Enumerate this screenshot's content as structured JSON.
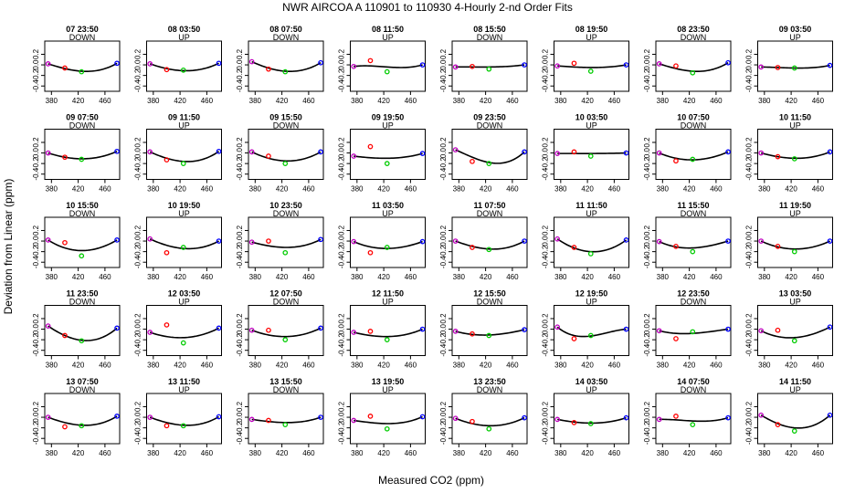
{
  "chart_data": {
    "type": "scatter",
    "title": "NWR   AIRCOA A   110901 to 110930   4-Hourly 2-nd Order Fits",
    "xlabel": "Measured CO2 (ppm)",
    "ylabel": "Deviation from Linear (ppm)",
    "xlim": [
      370,
      482
    ],
    "ylim": [
      -0.5,
      0.45
    ],
    "xticks": [
      380,
      420,
      460
    ],
    "xtick_labels": [
      "380",
      "420",
      "460"
    ],
    "yticks": [
      -0.4,
      -0.2,
      0.0,
      0.2
    ],
    "ytick_labels": [
      "-0.4",
      "-0.2",
      "0.0",
      "0.2"
    ],
    "standard_x": [
      375,
      400,
      425,
      478
    ],
    "standard_colors": [
      "#c000c0",
      "#ff0000",
      "#00cc00",
      "#0000ff"
    ],
    "curve_color": "#000000",
    "panels": [
      {
        "title": "07 23:50",
        "direction": "DOWN",
        "points": [
          0.02,
          -0.06,
          -0.13,
          0.03
        ],
        "curve": [
          0.02,
          -0.07,
          -0.12,
          0.03
        ]
      },
      {
        "title": "08 03:50",
        "direction": "UP",
        "points": [
          0.02,
          -0.09,
          -0.1,
          0.03
        ],
        "curve": [
          0.02,
          -0.07,
          -0.11,
          0.03
        ]
      },
      {
        "title": "08 07:50",
        "direction": "DOWN",
        "points": [
          0.06,
          -0.08,
          -0.13,
          0.04
        ],
        "curve": [
          0.06,
          -0.06,
          -0.12,
          0.04
        ]
      },
      {
        "title": "08 11:50",
        "direction": "UP",
        "points": [
          -0.03,
          0.08,
          -0.13,
          0.0
        ],
        "curve": [
          -0.03,
          -0.02,
          -0.04,
          0.0
        ]
      },
      {
        "title": "08 15:50",
        "direction": "DOWN",
        "points": [
          -0.04,
          -0.03,
          -0.08,
          0.0
        ],
        "curve": [
          -0.04,
          -0.04,
          -0.04,
          0.0
        ]
      },
      {
        "title": "08 19:50",
        "direction": "UP",
        "points": [
          -0.02,
          0.03,
          -0.12,
          0.0
        ],
        "curve": [
          -0.02,
          -0.04,
          -0.05,
          0.0
        ]
      },
      {
        "title": "08 23:50",
        "direction": "DOWN",
        "points": [
          0.02,
          -0.02,
          -0.15,
          0.04
        ],
        "curve": [
          0.02,
          -0.07,
          -0.12,
          0.04
        ]
      },
      {
        "title": "09 03:50",
        "direction": "UP",
        "points": [
          -0.04,
          -0.05,
          -0.06,
          -0.01
        ],
        "curve": [
          -0.04,
          -0.05,
          -0.06,
          -0.01
        ]
      },
      {
        "title": "09 07:50",
        "direction": "DOWN",
        "points": [
          0.0,
          -0.08,
          -0.12,
          0.03
        ],
        "curve": [
          0.0,
          -0.08,
          -0.11,
          0.03
        ]
      },
      {
        "title": "09 11:50",
        "direction": "UP",
        "points": [
          0.02,
          -0.13,
          -0.2,
          0.03
        ],
        "curve": [
          0.02,
          -0.1,
          -0.16,
          0.03
        ]
      },
      {
        "title": "09 15:50",
        "direction": "DOWN",
        "points": [
          0.02,
          -0.06,
          -0.2,
          0.02
        ],
        "curve": [
          0.02,
          -0.1,
          -0.15,
          0.02
        ]
      },
      {
        "title": "09 19:50",
        "direction": "UP",
        "points": [
          -0.06,
          0.12,
          -0.2,
          -0.01
        ],
        "curve": [
          -0.06,
          -0.09,
          -0.1,
          -0.01
        ]
      },
      {
        "title": "09 23:50",
        "direction": "DOWN",
        "points": [
          0.06,
          -0.16,
          -0.2,
          0.02
        ],
        "curve": [
          0.06,
          -0.08,
          -0.18,
          0.02
        ]
      },
      {
        "title": "10 03:50",
        "direction": "UP",
        "points": [
          -0.01,
          0.02,
          -0.06,
          0.0
        ],
        "curve": [
          -0.01,
          -0.01,
          -0.01,
          0.0
        ]
      },
      {
        "title": "10 07:50",
        "direction": "DOWN",
        "points": [
          0.0,
          -0.15,
          -0.12,
          0.02
        ],
        "curve": [
          0.0,
          -0.1,
          -0.13,
          0.02
        ]
      },
      {
        "title": "10 11:50",
        "direction": "UP",
        "points": [
          0.0,
          -0.07,
          -0.11,
          0.02
        ],
        "curve": [
          0.0,
          -0.07,
          -0.1,
          0.02
        ]
      },
      {
        "title": "10 15:50",
        "direction": "DOWN",
        "points": [
          0.02,
          -0.03,
          -0.28,
          0.02
        ],
        "curve": [
          0.02,
          -0.13,
          -0.18,
          0.02
        ]
      },
      {
        "title": "10 19:50",
        "direction": "UP",
        "points": [
          0.04,
          -0.22,
          -0.12,
          0.0
        ],
        "curve": [
          0.04,
          -0.08,
          -0.14,
          0.0
        ]
      },
      {
        "title": "10 23:50",
        "direction": "DOWN",
        "points": [
          -0.02,
          0.0,
          -0.22,
          0.03
        ],
        "curve": [
          -0.02,
          -0.09,
          -0.12,
          0.03
        ]
      },
      {
        "title": "11 03:50",
        "direction": "UP",
        "points": [
          -0.01,
          -0.22,
          -0.12,
          -0.01
        ],
        "curve": [
          -0.01,
          -0.11,
          -0.14,
          -0.01
        ]
      },
      {
        "title": "11 07:50",
        "direction": "DOWN",
        "points": [
          0.0,
          -0.12,
          -0.16,
          0.0
        ],
        "curve": [
          0.0,
          -0.1,
          -0.15,
          0.0
        ]
      },
      {
        "title": "11 11:50",
        "direction": "UP",
        "points": [
          0.04,
          -0.12,
          -0.24,
          0.02
        ],
        "curve": [
          0.04,
          -0.13,
          -0.2,
          0.02
        ]
      },
      {
        "title": "11 15:50",
        "direction": "DOWN",
        "points": [
          -0.01,
          -0.1,
          -0.2,
          0.0
        ],
        "curve": [
          -0.01,
          -0.11,
          -0.13,
          0.0
        ]
      },
      {
        "title": "11 19:50",
        "direction": "UP",
        "points": [
          0.0,
          -0.1,
          -0.2,
          0.0
        ],
        "curve": [
          0.0,
          -0.11,
          -0.15,
          0.0
        ]
      },
      {
        "title": "11 23:50",
        "direction": "DOWN",
        "points": [
          0.06,
          -0.12,
          -0.22,
          0.02
        ],
        "curve": [
          0.06,
          -0.12,
          -0.21,
          0.02
        ]
      },
      {
        "title": "12 03:50",
        "direction": "UP",
        "points": [
          -0.06,
          0.08,
          -0.26,
          0.02
        ],
        "curve": [
          -0.06,
          -0.14,
          -0.16,
          0.02
        ]
      },
      {
        "title": "12 07:50",
        "direction": "DOWN",
        "points": [
          -0.02,
          -0.02,
          -0.2,
          0.02
        ],
        "curve": [
          -0.02,
          -0.11,
          -0.14,
          0.02
        ]
      },
      {
        "title": "12 11:50",
        "direction": "UP",
        "points": [
          -0.06,
          -0.04,
          -0.2,
          0.0
        ],
        "curve": [
          -0.06,
          -0.12,
          -0.14,
          0.0
        ]
      },
      {
        "title": "12 15:50",
        "direction": "DOWN",
        "points": [
          -0.04,
          -0.09,
          -0.12,
          -0.01
        ],
        "curve": [
          -0.04,
          -0.1,
          -0.11,
          -0.01
        ]
      },
      {
        "title": "12 19:50",
        "direction": "UP",
        "points": [
          0.04,
          -0.18,
          -0.12,
          0.0
        ],
        "curve": [
          0.04,
          -0.12,
          -0.13,
          0.0
        ]
      },
      {
        "title": "12 23:50",
        "direction": "DOWN",
        "points": [
          -0.03,
          -0.18,
          -0.05,
          0.0
        ],
        "curve": [
          -0.03,
          -0.08,
          -0.08,
          0.0
        ]
      },
      {
        "title": "13 03:50",
        "direction": "UP",
        "points": [
          -0.03,
          -0.02,
          -0.22,
          0.04
        ],
        "curve": [
          -0.03,
          -0.14,
          -0.16,
          0.04
        ]
      },
      {
        "title": "13 07:50",
        "direction": "DOWN",
        "points": [
          0.0,
          -0.18,
          -0.16,
          0.02
        ],
        "curve": [
          0.0,
          -0.1,
          -0.15,
          0.02
        ]
      },
      {
        "title": "13 11:50",
        "direction": "UP",
        "points": [
          0.0,
          -0.16,
          -0.16,
          0.01
        ],
        "curve": [
          0.0,
          -0.1,
          -0.15,
          0.01
        ]
      },
      {
        "title": "13 15:50",
        "direction": "DOWN",
        "points": [
          -0.04,
          -0.06,
          -0.14,
          0.0
        ],
        "curve": [
          -0.04,
          -0.08,
          -0.1,
          0.0
        ]
      },
      {
        "title": "13 19:50",
        "direction": "UP",
        "points": [
          -0.06,
          0.02,
          -0.22,
          0.01
        ],
        "curve": [
          -0.06,
          -0.1,
          -0.12,
          0.01
        ]
      },
      {
        "title": "13 23:50",
        "direction": "DOWN",
        "points": [
          -0.02,
          -0.08,
          -0.22,
          -0.01
        ],
        "curve": [
          -0.02,
          -0.12,
          -0.16,
          -0.01
        ]
      },
      {
        "title": "14 03:50",
        "direction": "UP",
        "points": [
          -0.04,
          -0.1,
          -0.12,
          -0.01
        ],
        "curve": [
          -0.04,
          -0.09,
          -0.11,
          -0.01
        ]
      },
      {
        "title": "14 07:50",
        "direction": "DOWN",
        "points": [
          -0.04,
          0.02,
          -0.14,
          -0.01
        ],
        "curve": [
          -0.04,
          -0.05,
          -0.07,
          -0.01
        ]
      },
      {
        "title": "14 11:50",
        "direction": "UP",
        "points": [
          0.04,
          -0.14,
          -0.26,
          0.04
        ],
        "curve": [
          0.04,
          -0.12,
          -0.2,
          0.04
        ]
      }
    ]
  }
}
